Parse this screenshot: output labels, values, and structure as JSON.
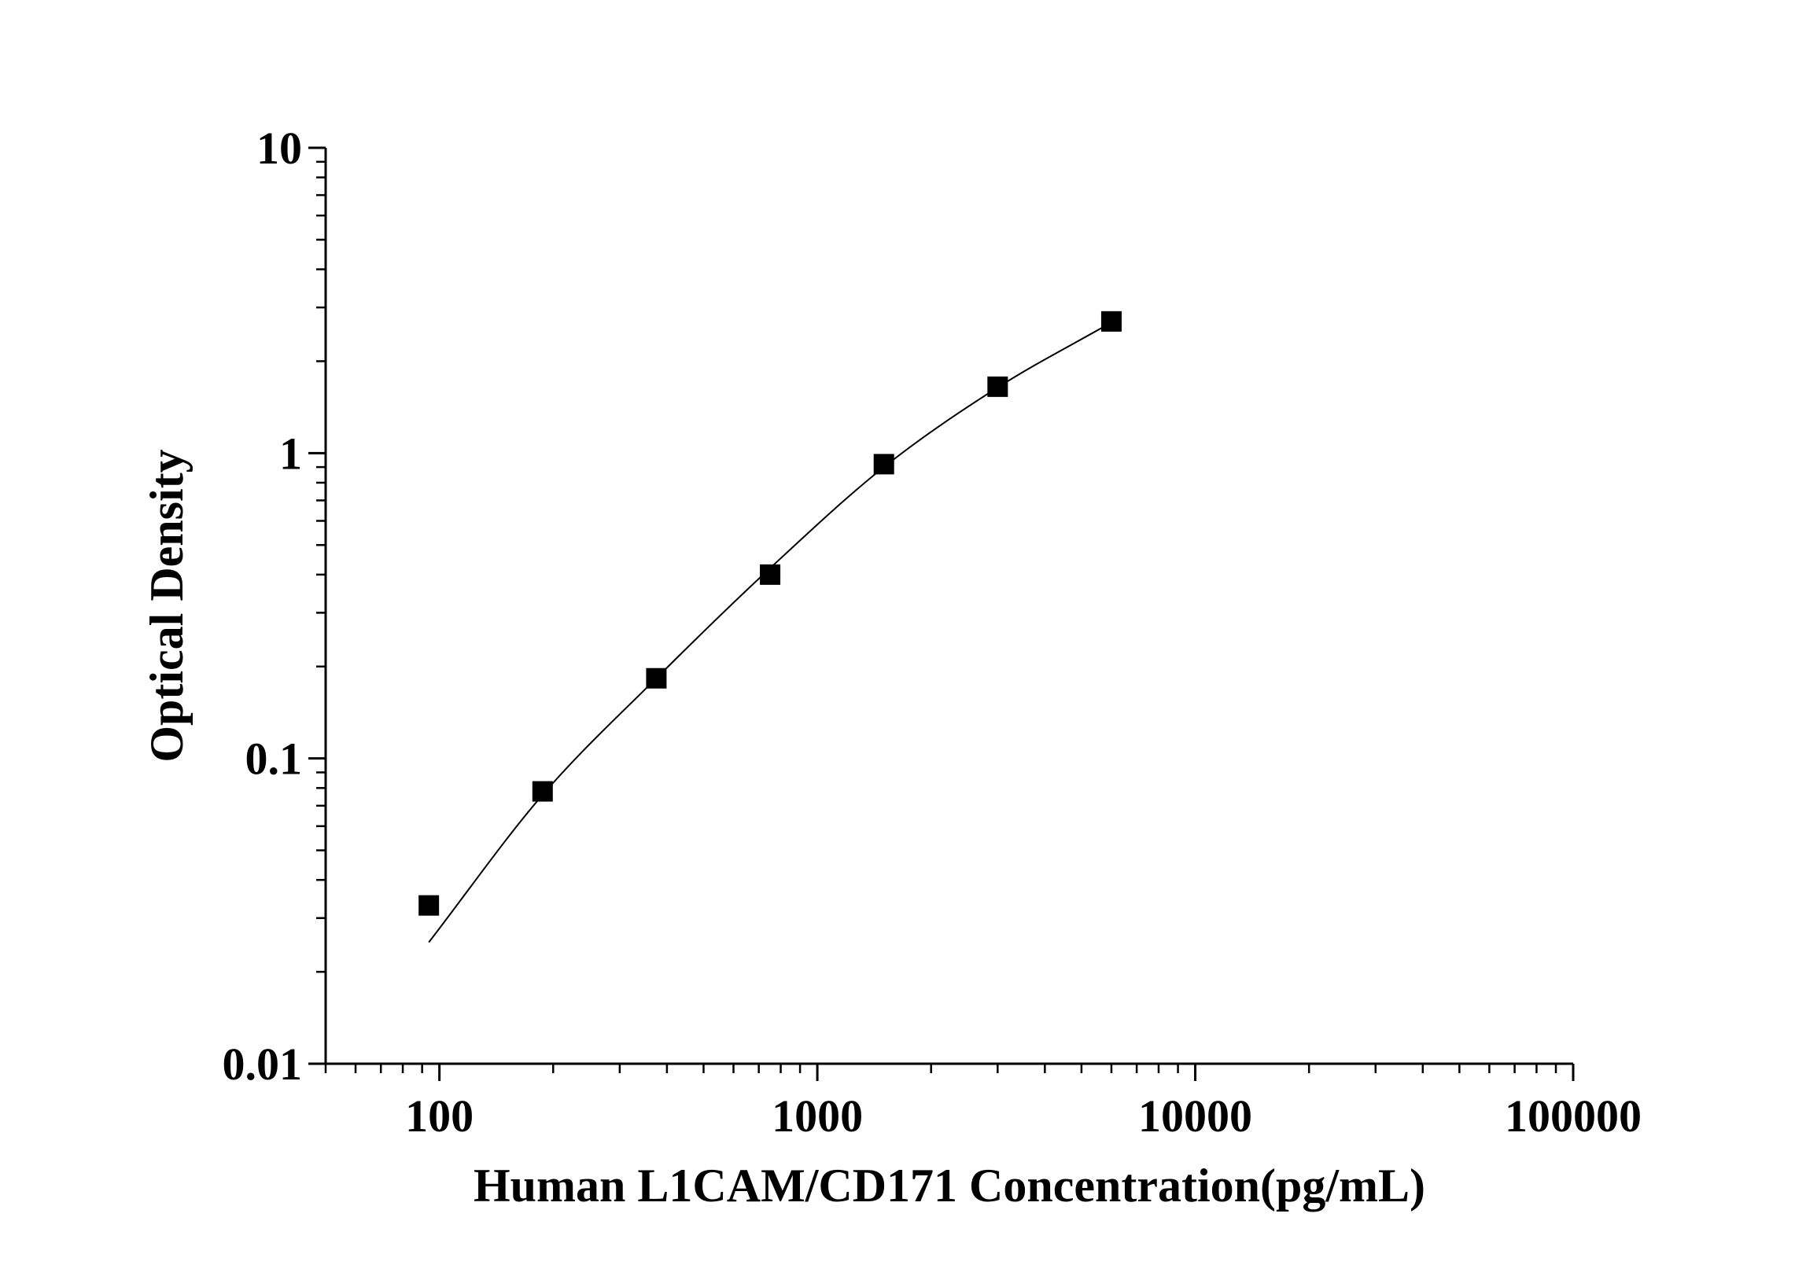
{
  "chart_data": {
    "type": "scatter",
    "title": "",
    "xlabel": "Human L1CAM/CD171 Concentration(pg/mL)",
    "ylabel": "Optical Density",
    "x_scale": "log",
    "y_scale": "log",
    "xlim": [
      50,
      100000
    ],
    "ylim": [
      0.01,
      10
    ],
    "x_ticks": [
      100,
      1000,
      10000,
      100000
    ],
    "x_tick_labels": [
      "100",
      "1000",
      "10000",
      "100000"
    ],
    "y_ticks": [
      0.01,
      0.1,
      1,
      10
    ],
    "y_tick_labels": [
      "0.01",
      "0.1",
      "1",
      "10"
    ],
    "grid": false,
    "series": [
      {
        "marker": "square",
        "color": "#000000",
        "x": [
          93.75,
          187.5,
          375,
          750,
          1500,
          3000,
          6000
        ],
        "y": [
          0.033,
          0.078,
          0.183,
          0.4,
          0.92,
          1.65,
          2.7
        ]
      }
    ],
    "fit_curve": {
      "color": "#000000",
      "x": [
        93.75,
        187.5,
        375,
        750,
        1500,
        3000,
        6000
      ],
      "y": [
        0.025,
        0.076,
        0.183,
        0.42,
        0.9,
        1.64,
        2.68
      ]
    }
  }
}
